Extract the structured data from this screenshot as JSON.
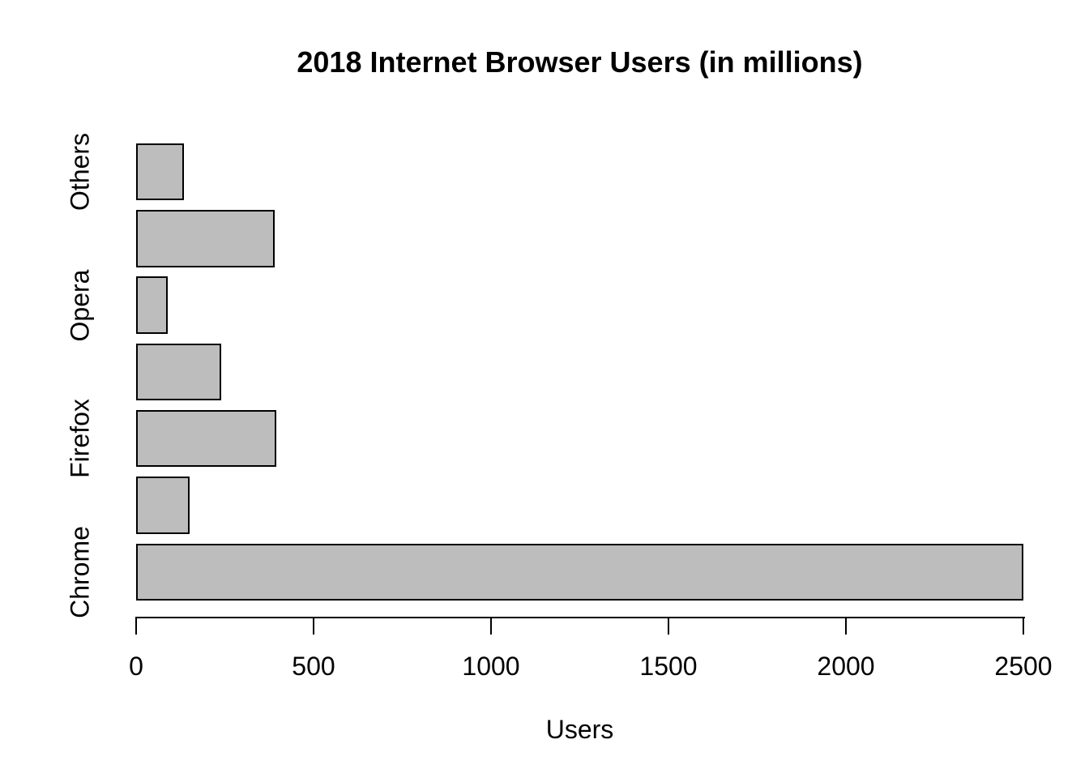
{
  "chart_data": {
    "type": "bar",
    "orientation": "horizontal",
    "title": "2018 Internet Browser Users (in millions)",
    "xlabel": "Users",
    "ylabel": "",
    "xlim": [
      0,
      2500
    ],
    "xticks": [
      0,
      500,
      1000,
      1500,
      2000,
      2500
    ],
    "grid": false,
    "legend_position": "none",
    "bars_bottom_to_top": [
      {
        "label": "Chrome",
        "value": 2500
      },
      {
        "label": "",
        "value": 150
      },
      {
        "label": "Firefox",
        "value": 395
      },
      {
        "label": "",
        "value": 240
      },
      {
        "label": "Opera",
        "value": 90
      },
      {
        "label": "",
        "value": 390
      },
      {
        "label": "Others",
        "value": 135
      }
    ],
    "colors": {
      "bar_fill": "#bdbdbd",
      "bar_border": "#000000",
      "text": "#000000",
      "background": "#ffffff"
    }
  }
}
